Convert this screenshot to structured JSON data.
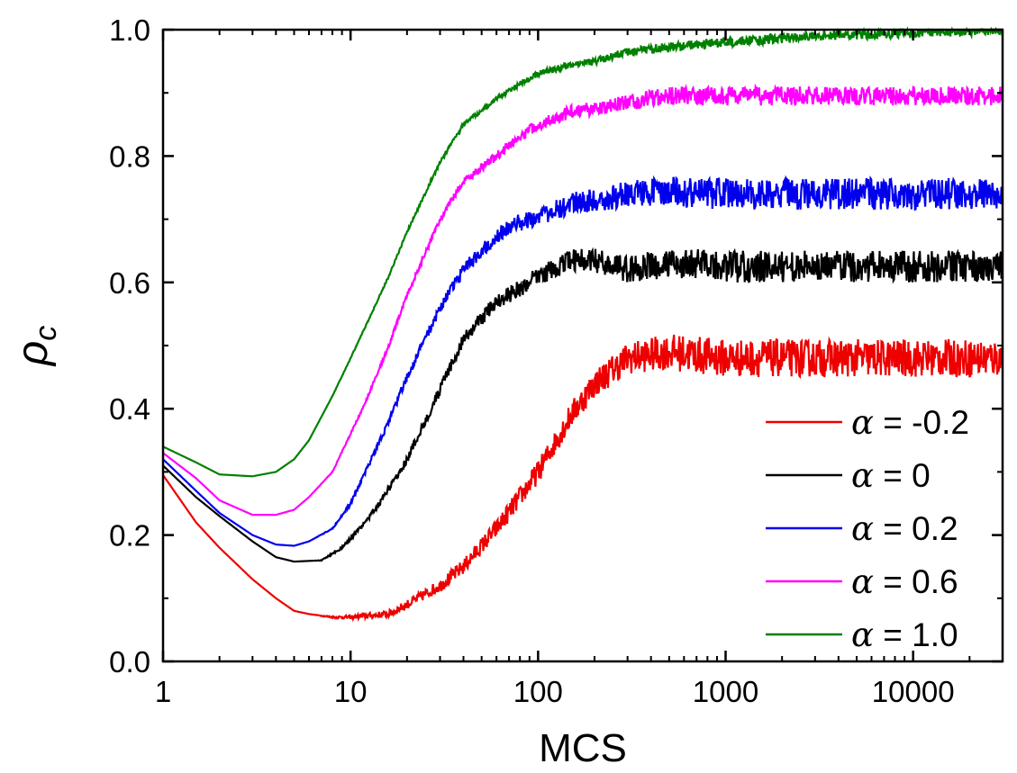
{
  "chart_data": {
    "type": "line",
    "xlabel": "MCS",
    "ylabel": "ρ",
    "ylabel_subscript": "c",
    "x_scale": "log",
    "xlim": [
      1,
      30000
    ],
    "ylim": [
      0.0,
      1.0
    ],
    "x_ticks": [
      1,
      10,
      100,
      1000,
      10000
    ],
    "x_tick_labels": [
      "1",
      "10",
      "100",
      "1000",
      "10000"
    ],
    "y_ticks": [
      0.0,
      0.2,
      0.4,
      0.6,
      0.8,
      1.0
    ],
    "y_tick_labels": [
      "0.0",
      "0.2",
      "0.4",
      "0.6",
      "0.8",
      "1.0"
    ],
    "grid": false,
    "legend_position": "lower-right",
    "series": [
      {
        "name": "α = -0.2",
        "legend_symbol": "α",
        "legend_value": "= -0.2",
        "color": "#ee0000",
        "noise": 0.03,
        "x": [
          1,
          1.5,
          2,
          3,
          4,
          5,
          6,
          8,
          10,
          12,
          16,
          20,
          30,
          40,
          60,
          80,
          100,
          150,
          200,
          300,
          500,
          1000,
          30000
        ],
        "values": [
          0.295,
          0.22,
          0.18,
          0.13,
          0.1,
          0.08,
          0.075,
          0.07,
          0.07,
          0.072,
          0.075,
          0.09,
          0.12,
          0.15,
          0.21,
          0.26,
          0.3,
          0.39,
          0.44,
          0.48,
          0.49,
          0.48,
          0.48
        ]
      },
      {
        "name": "α = 0",
        "legend_symbol": "α",
        "legend_value": "= 0",
        "color": "#000000",
        "noise": 0.025,
        "x": [
          1,
          1.5,
          2,
          3,
          4,
          5,
          7,
          9,
          12,
          15,
          20,
          30,
          40,
          60,
          80,
          100,
          150,
          200,
          300,
          500,
          1000,
          30000
        ],
        "values": [
          0.31,
          0.26,
          0.23,
          0.19,
          0.165,
          0.158,
          0.16,
          0.18,
          0.22,
          0.26,
          0.32,
          0.43,
          0.51,
          0.57,
          0.59,
          0.61,
          0.635,
          0.635,
          0.62,
          0.63,
          0.625,
          0.625
        ]
      },
      {
        "name": "α = 0.2",
        "legend_symbol": "α",
        "legend_value": "= 0.2",
        "color": "#0000ee",
        "noise": 0.025,
        "x": [
          1,
          1.5,
          2,
          3,
          4,
          5,
          6,
          8,
          10,
          12,
          16,
          20,
          30,
          40,
          60,
          80,
          100,
          150,
          200,
          300,
          500,
          1000,
          30000
        ],
        "values": [
          0.32,
          0.27,
          0.235,
          0.2,
          0.185,
          0.183,
          0.19,
          0.21,
          0.25,
          0.3,
          0.38,
          0.45,
          0.56,
          0.62,
          0.675,
          0.695,
          0.705,
          0.725,
          0.73,
          0.74,
          0.745,
          0.74,
          0.74
        ]
      },
      {
        "name": "α = 0.6",
        "legend_symbol": "α",
        "legend_value": "= 0.6",
        "color": "#ff00ff",
        "noise": 0.015,
        "x": [
          1,
          1.5,
          2,
          3,
          4,
          5,
          6,
          8,
          10,
          12,
          16,
          20,
          30,
          40,
          60,
          80,
          100,
          150,
          200,
          300,
          500,
          1000,
          30000
        ],
        "values": [
          0.33,
          0.29,
          0.255,
          0.232,
          0.232,
          0.24,
          0.26,
          0.3,
          0.36,
          0.41,
          0.5,
          0.58,
          0.7,
          0.76,
          0.8,
          0.83,
          0.85,
          0.87,
          0.875,
          0.885,
          0.895,
          0.895,
          0.895
        ]
      },
      {
        "name": "α = 1.0",
        "legend_symbol": "α",
        "legend_value": "= 1.0",
        "color": "#008000",
        "noise": 0.008,
        "x": [
          1,
          1.5,
          2,
          3,
          4,
          5,
          6,
          8,
          10,
          12,
          16,
          20,
          30,
          40,
          60,
          80,
          100,
          150,
          200,
          300,
          500,
          1000,
          3000,
          10000,
          30000
        ],
        "values": [
          0.34,
          0.315,
          0.296,
          0.293,
          0.3,
          0.32,
          0.35,
          0.42,
          0.48,
          0.53,
          0.61,
          0.68,
          0.79,
          0.85,
          0.89,
          0.915,
          0.93,
          0.945,
          0.95,
          0.965,
          0.972,
          0.98,
          0.99,
          0.995,
          1.0
        ]
      }
    ]
  }
}
